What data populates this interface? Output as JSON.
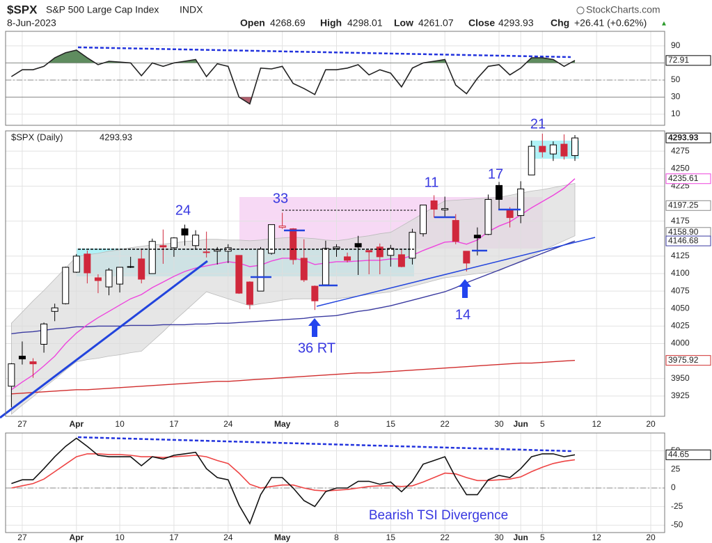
{
  "header": {
    "symbol": "$SPX",
    "name": "S&P 500 Large Cap Index",
    "exchange": "INDX",
    "date": "8-Jun-2023",
    "source": "StockCharts.com",
    "open_label": "Open",
    "open": 4268.69,
    "high_label": "High",
    "high": 4298.01,
    "low_label": "Low",
    "low": 4261.07,
    "close_label": "Close",
    "close": 4293.93,
    "chg_label": "Chg",
    "chg": "+26.41 (+0.62%)",
    "chg_arrow": "▲"
  },
  "chart_data": [
    {
      "type": "line",
      "ylim": [
        -3,
        107
      ],
      "yticks": [
        10,
        30,
        50,
        90
      ],
      "levels": [
        70,
        30
      ],
      "midline": 50,
      "overbought_color": "#5f8c5f",
      "oversold_color": "#b0606e",
      "series": [
        {
          "color": "#222222",
          "values": [
            54,
            62,
            62,
            66,
            76,
            82,
            85,
            76,
            68,
            72,
            71,
            70,
            55,
            70,
            66,
            70,
            72,
            74,
            54,
            69,
            66,
            30,
            22,
            64,
            63,
            66,
            46,
            40,
            33,
            62,
            62,
            64,
            68,
            56,
            62,
            58,
            42,
            64,
            70,
            72,
            74,
            44,
            34,
            52,
            66,
            68,
            56,
            64,
            76,
            76,
            74,
            66,
            72.91,
            null,
            null,
            null,
            null,
            null,
            null,
            null
          ]
        }
      ],
      "tags": [
        {
          "value": 72.91,
          "color": "#000000"
        }
      ]
    },
    {
      "type": "candlestick",
      "legend_label": "$SPX (Daily)",
      "ylim": [
        3896,
        4304
      ],
      "yticks": [
        3925,
        3950,
        4000,
        4025,
        4050,
        4075,
        4100,
        4125,
        4175,
        4225,
        4250,
        4275
      ],
      "categories": [
        null,
        "27",
        null,
        null,
        null,
        null,
        "Apr",
        null,
        null,
        null,
        "10",
        null,
        null,
        null,
        null,
        "17",
        null,
        null,
        null,
        null,
        "24",
        null,
        null,
        null,
        null,
        "May",
        null,
        null,
        null,
        null,
        "8",
        null,
        null,
        null,
        null,
        "15",
        null,
        null,
        null,
        null,
        "22",
        null,
        null,
        null,
        null,
        "30",
        null,
        "Jun",
        null,
        "5",
        null,
        null,
        null,
        null,
        "12",
        null,
        null,
        null,
        null,
        "20"
      ],
      "up_color": "#000000",
      "down_color": "#d0283c",
      "open": [
        3939,
        3982,
        3974,
        3999,
        4046,
        4057,
        4102,
        4128,
        4094,
        4081,
        4085,
        4110,
        4121,
        4100,
        4140,
        4137,
        4164,
        4140,
        4131,
        4132,
        4132,
        4126,
        4088,
        4075,
        4129,
        4166,
        4164,
        4122,
        4082,
        4084,
        4136,
        4124,
        4143,
        4133,
        4138,
        4126,
        4127,
        4122,
        4157,
        4204,
        4191,
        4176,
        4132,
        4155,
        4156,
        4226,
        4191,
        4183,
        4241,
        4282,
        4271,
        4285,
        4268.69,
        null,
        null,
        null,
        null,
        null,
        null,
        null
      ],
      "high": [
        3972,
        4003,
        3979,
        4030,
        4057,
        4110,
        4128,
        4133,
        4099,
        4108,
        4109,
        4124,
        4134,
        4150,
        4163,
        4152,
        4170,
        4162,
        4160,
        4138,
        4142,
        4126,
        4089,
        4138,
        4170,
        4187,
        4165,
        4149,
        4083,
        4147,
        4142,
        4130,
        4154,
        4133,
        4143,
        4141,
        4135,
        4164,
        4198,
        4212,
        4210,
        4185,
        4132,
        4166,
        4213,
        4231,
        4195,
        4232,
        4290,
        4300,
        4289,
        4299,
        4298.01,
        null,
        null,
        null,
        null,
        null,
        null,
        null
      ],
      "low": [
        3909,
        3970,
        3951,
        3987,
        4032,
        4056,
        4101,
        4086,
        4072,
        4069,
        4073,
        4108,
        4086,
        4100,
        4114,
        4124,
        4140,
        4135,
        4123,
        4113,
        4115,
        4071,
        4049,
        4075,
        4127,
        4164,
        4113,
        4088,
        4048,
        4084,
        4124,
        4116,
        4098,
        4099,
        4099,
        4110,
        4109,
        4113,
        4153,
        4180,
        4180,
        4142,
        4103,
        4126,
        4155,
        4192,
        4166,
        4172,
        4241,
        4266,
        4261,
        4263,
        4261.07,
        null,
        null,
        null,
        null,
        null,
        null,
        null
      ],
      "close": [
        3971,
        3978,
        3971,
        4028,
        4051,
        4109,
        4125,
        4101,
        4090,
        4105,
        4109,
        4109,
        4092,
        4146,
        4138,
        4151,
        4155,
        4155,
        4130,
        4134,
        4137,
        4072,
        4056,
        4135,
        4170,
        4168,
        4120,
        4091,
        4061,
        4136,
        4138,
        4119,
        4138,
        4131,
        4124,
        4136,
        4110,
        4159,
        4198,
        4192,
        4193,
        4146,
        4115,
        4151,
        4206,
        4206,
        4180,
        4221,
        4282,
        4274,
        4284,
        4268,
        4293.93,
        null,
        null,
        null,
        null,
        null,
        null,
        null
      ],
      "band": {
        "color": "#dcdcdc",
        "upper": [
          4029,
          4045,
          4061,
          4076,
          4092,
          4108,
          4124,
          4127,
          4129,
          4132,
          4134,
          4137,
          4139,
          4141,
          4142,
          4144,
          4146,
          4147,
          4149,
          4149,
          4148,
          4148,
          4147,
          4148,
          4150,
          4151,
          4152,
          4151,
          4150,
          4148,
          4147,
          4149,
          4152,
          4154,
          4157,
          4159,
          4168,
          4177,
          4186,
          4195,
          4204,
          4205,
          4206,
          4207,
          4208,
          4209,
          4212,
          4215,
          4218,
          4220,
          4223,
          4226,
          4229,
          null,
          null,
          null,
          null,
          null,
          null,
          null
        ],
        "lower": [
          3899,
          3912,
          3924,
          3937,
          3949,
          3962,
          3974,
          3977,
          3979,
          3982,
          3984,
          3987,
          3989,
          4003,
          4017,
          4032,
          4046,
          4060,
          4074,
          4069,
          4064,
          4059,
          4054,
          4057,
          4059,
          4062,
          4064,
          4064,
          4064,
          4064,
          4064,
          4066,
          4068,
          4070,
          4072,
          4074,
          4078,
          4082,
          4086,
          4090,
          4094,
          4096,
          4098,
          4100,
          4102,
          4104,
          4111,
          4118,
          4125,
          4133,
          4140,
          4147,
          4154,
          null,
          null,
          null,
          null,
          null,
          null,
          null
        ]
      },
      "lines": [
        {
          "color": "#3a3aa0",
          "values": [
            4014,
            4016,
            4017,
            4019,
            4021,
            4022,
            4024,
            4024,
            4025,
            4025,
            4025,
            4026,
            4026,
            4026,
            4027,
            4027,
            4027,
            4028,
            4028,
            4029,
            4029,
            4030,
            4031,
            4032,
            4033,
            4034,
            4035,
            4036,
            4038,
            4039,
            4040,
            4043,
            4046,
            4048,
            4051,
            4054,
            4058,
            4062,
            4066,
            4070,
            4074,
            4080,
            4087,
            4093,
            4099,
            4105,
            4111,
            4117,
            4123,
            4129,
            4135,
            4141,
            4146.68,
            null,
            null,
            null,
            null,
            null,
            null,
            null
          ]
        },
        {
          "color": "#d02c2c",
          "values": [
            3928,
            3929,
            3930,
            3931,
            3932,
            3933,
            3934,
            3934,
            3935,
            3936,
            3937,
            3938,
            3939,
            3940,
            3941,
            3942,
            3943,
            3944,
            3945,
            3946,
            3946,
            3947,
            3948,
            3949,
            3950,
            3951,
            3952,
            3953,
            3954,
            3955,
            3956,
            3957,
            3958,
            3958,
            3959,
            3960,
            3961,
            3962,
            3963,
            3964,
            3965,
            3966,
            3967,
            3968,
            3969,
            3970,
            3971,
            3972,
            3972,
            3973,
            3974,
            3975,
            3975.92,
            null,
            null,
            null,
            null,
            null,
            null,
            null
          ]
        },
        {
          "color": "#ee44dd",
          "values": [
            3934,
            3945,
            3955,
            3968,
            3982,
            4000,
            4015,
            4027,
            4037,
            4046,
            4055,
            4064,
            4070,
            4080,
            4088,
            4096,
            4103,
            4108,
            4111,
            4114,
            4117,
            4115,
            4110,
            4112,
            4118,
            4122,
            4122,
            4119,
            4113,
            4115,
            4117,
            4117,
            4118,
            4119,
            4119,
            4121,
            4121,
            4126,
            4133,
            4139,
            4145,
            4146,
            4142,
            4148,
            4160,
            4168,
            4174,
            4184,
            4194,
            4203,
            4212,
            4222,
            4235.61,
            null,
            null,
            null,
            null,
            null,
            null,
            null
          ]
        }
      ],
      "tags": [
        {
          "value": 4293.93,
          "color": "#000000"
        },
        {
          "value": 4235.61,
          "color": "#ee44dd"
        },
        {
          "value": 4197.25,
          "color": "#888888"
        },
        {
          "value": 4158.9,
          "label": "4158.90",
          "color": "#888888"
        },
        {
          "value": 4146.68,
          "color": "#3a3aa0"
        },
        {
          "value": 3975.92,
          "color": "#d02c2c"
        }
      ],
      "annotations": [
        "24",
        "33",
        "11",
        "17",
        "21",
        "36 RT",
        "14"
      ]
    },
    {
      "type": "line",
      "ylim": [
        -60,
        74
      ],
      "yticks": [
        50,
        25,
        0,
        -25,
        -50
      ],
      "midline": 0,
      "annotation": "Bearish TSI Divergence",
      "series": [
        {
          "color": "#ee4444",
          "values": [
            0,
            3,
            6,
            12,
            22,
            32,
            42,
            46,
            46,
            45,
            45,
            44,
            42,
            42,
            41,
            42,
            43,
            44,
            42,
            37,
            33,
            20,
            5,
            0,
            2,
            4,
            4,
            0,
            -3,
            -4,
            -3,
            -2,
            0,
            2,
            3,
            3,
            2,
            3,
            8,
            14,
            20,
            19,
            14,
            10,
            10,
            11,
            12,
            15,
            22,
            28,
            33,
            36,
            38,
            null,
            null,
            null,
            null,
            null,
            null,
            null
          ]
        },
        {
          "color": "#111111",
          "values": [
            6,
            11,
            11,
            26,
            42,
            56,
            67,
            56,
            44,
            42,
            42,
            42,
            30,
            42,
            39,
            44,
            46,
            48,
            26,
            14,
            11,
            -23,
            -48,
            -9,
            14,
            14,
            0,
            -17,
            -25,
            -5,
            0,
            0,
            9,
            9,
            5,
            8,
            -5,
            9,
            32,
            37,
            42,
            14,
            -9,
            -9,
            11,
            17,
            14,
            26,
            42,
            46,
            46,
            42,
            44.65,
            null,
            null,
            null,
            null,
            null,
            null,
            null
          ]
        }
      ],
      "tags": [
        {
          "value": 44.65,
          "color": "#000000"
        }
      ]
    }
  ]
}
